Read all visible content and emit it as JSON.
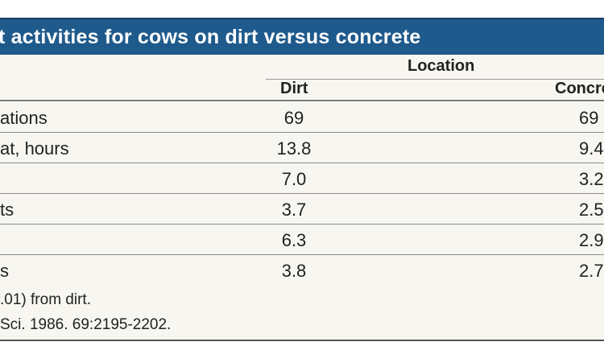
{
  "table": {
    "title": "t activities for cows on dirt versus concrete",
    "group_header": "Location",
    "columns": [
      "Dirt",
      "Concre"
    ],
    "rows": [
      {
        "label": "ations",
        "dirt": "69",
        "concrete": "69"
      },
      {
        "label": "at, hours",
        "dirt": "13.8",
        "concrete": "9.4"
      },
      {
        "label": "",
        "dirt": "7.0",
        "concrete": "3.2"
      },
      {
        "label": "ts",
        "dirt": "3.7",
        "concrete": "2.5"
      },
      {
        "label": "",
        "dirt": "6.3",
        "concrete": "2.9"
      },
      {
        "label": "s",
        "dirt": "3.8",
        "concrete": "2.7"
      }
    ],
    "footnotes": [
      ".01) from dirt.",
      "Sci. 1986. 69:2195-2202."
    ]
  },
  "colors": {
    "title_bg": "#1f5a8c",
    "title_text": "#ffffff",
    "row_bg": "#f7f6f0",
    "text": "#222222"
  }
}
